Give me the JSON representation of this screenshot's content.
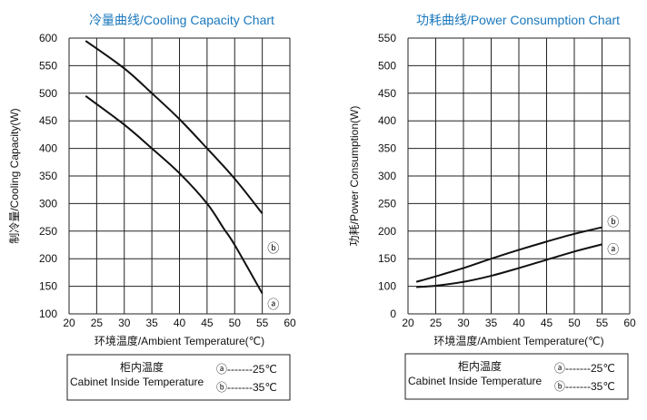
{
  "chart_data": [
    {
      "type": "line",
      "title": "冷量曲线/Cooling Capacity Chart",
      "xlabel": "环境温度/Ambient Temperature(℃)",
      "ylabel": "制冷量/Cooling  Capacity(W)",
      "xlim": [
        20,
        60
      ],
      "ylim": [
        100,
        600
      ],
      "xticks": [
        "20",
        "25",
        "30",
        "35",
        "40",
        "45",
        "50",
        "55",
        "60"
      ],
      "yticks": [
        "100",
        "150",
        "200",
        "250",
        "300",
        "350",
        "400",
        "450",
        "500",
        "550",
        "600"
      ],
      "grid": true,
      "series": [
        {
          "name": "ⓑ",
          "x": [
            23,
            30,
            35,
            40,
            45,
            50,
            55
          ],
          "y": [
            595,
            545,
            500,
            453,
            400,
            345,
            282
          ],
          "label_at": [
            57,
            220
          ]
        },
        {
          "name": "ⓐ",
          "x": [
            23,
            30,
            35,
            40,
            45,
            48,
            50,
            55
          ],
          "y": [
            495,
            443,
            400,
            355,
            300,
            255,
            225,
            137
          ],
          "label_at": [
            57,
            118
          ]
        }
      ],
      "legend": {
        "title_cn": "柜内温度",
        "title_en": "Cabinet Inside Temperature",
        "entries": [
          "ⓐ-------25℃",
          "ⓑ-------35℃"
        ]
      }
    },
    {
      "type": "line",
      "title": "功耗曲线/Power Consumption Chart",
      "xlabel": "环境温度/Ambient Temperature(℃)",
      "ylabel": "功耗/Power Consumption(W)",
      "xlim": [
        20,
        60
      ],
      "ylim": [
        0,
        550
      ],
      "xticks": [
        "20",
        "25",
        "30",
        "35",
        "40",
        "45",
        "50",
        "55",
        "60"
      ],
      "yticks": [
        "0",
        "100",
        "150",
        "200",
        "250",
        "300",
        "350",
        "400",
        "450",
        "500",
        "550"
      ],
      "grid": true,
      "series": [
        {
          "name": "ⓑ",
          "x": [
            21.5,
            25,
            30,
            35,
            40,
            45,
            50,
            55
          ],
          "y": [
            108,
            118,
            133,
            150,
            166,
            181,
            195,
            207
          ],
          "label_at": [
            57,
            218
          ]
        },
        {
          "name": "ⓐ",
          "x": [
            21.5,
            25,
            30,
            35,
            40,
            45,
            50,
            55
          ],
          "y": [
            97,
            101,
            108,
            119,
            133,
            148,
            163,
            176
          ],
          "label_at": [
            57,
            168
          ]
        }
      ],
      "legend": {
        "title_cn": "柜内温度",
        "title_en": "Cabinet Inside Temperature",
        "entries": [
          "ⓐ-------25℃",
          "ⓑ-------35℃"
        ]
      }
    }
  ]
}
